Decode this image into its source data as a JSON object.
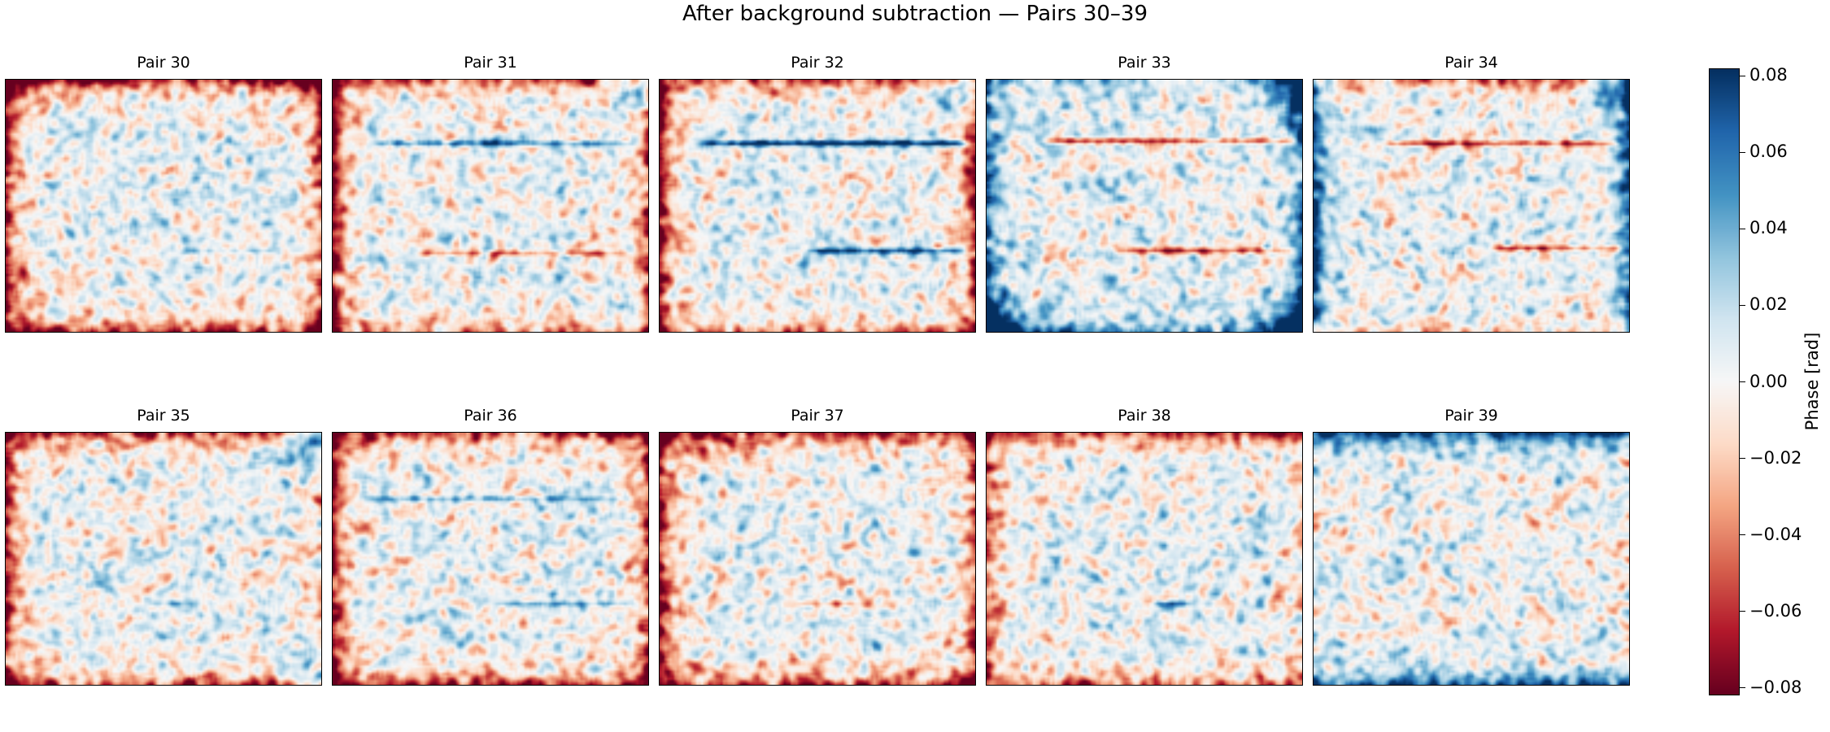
{
  "chart_data": {
    "type": "heatmap",
    "title": "After background subtraction — Pairs 30–39",
    "colormap": "RdBu",
    "value_range": [
      -0.082,
      0.082
    ],
    "colorbar": {
      "label": "Phase [rad]",
      "ticks": [
        "0.08",
        "0.06",
        "0.04",
        "0.02",
        "0.00",
        "−0.02",
        "−0.04",
        "−0.06",
        "−0.08"
      ],
      "tick_values": [
        0.08,
        0.06,
        0.04,
        0.02,
        0.0,
        -0.02,
        -0.04,
        -0.06,
        -0.08
      ]
    },
    "panels": [
      {
        "title": "Pair 30",
        "edge": {
          "left": -0.08,
          "right": -0.05,
          "top": -0.08,
          "bottom": -0.07
        },
        "corners": {},
        "streaks": [
          {
            "y": 0.68,
            "x0": 0.5,
            "x1": 0.88,
            "amp": 0.025
          }
        ]
      },
      {
        "title": "Pair 31",
        "edge": {
          "left": -0.08,
          "right": -0.06,
          "top": -0.05,
          "bottom": -0.04
        },
        "corners": {
          "tr": 0.07,
          "br": 0.04
        },
        "streaks": [
          {
            "y": 0.25,
            "x0": 0.1,
            "x1": 0.98,
            "amp": 0.05
          },
          {
            "y": 0.69,
            "x0": 0.25,
            "x1": 0.95,
            "amp": -0.04
          }
        ]
      },
      {
        "title": "Pair 32",
        "edge": {
          "left": -0.085,
          "right": -0.075,
          "top": -0.05,
          "bottom": -0.04
        },
        "corners": {
          "tr": 0.07
        },
        "streaks": [
          {
            "y": 0.25,
            "x0": 0.12,
            "x1": 0.99,
            "amp": 0.085
          },
          {
            "y": 0.68,
            "x0": 0.45,
            "x1": 0.99,
            "amp": 0.07
          }
        ]
      },
      {
        "title": "Pair 33",
        "edge": {
          "left": 0.06,
          "right": 0.05,
          "top": 0.02,
          "bottom": 0.04
        },
        "corners": {
          "tr": 0.08,
          "bl": 0.08,
          "br": 0.07
        },
        "streaks": [
          {
            "y": 0.24,
            "x0": 0.15,
            "x1": 0.99,
            "amp": -0.06
          },
          {
            "y": 0.68,
            "x0": 0.4,
            "x1": 0.99,
            "amp": -0.05
          }
        ]
      },
      {
        "title": "Pair 34",
        "edge": {
          "left": 0.075,
          "right": 0.06,
          "top": -0.04,
          "bottom": -0.02
        },
        "corners": {
          "tr": 0.08
        },
        "streaks": [
          {
            "y": 0.25,
            "x0": 0.2,
            "x1": 0.99,
            "amp": -0.06
          },
          {
            "y": 0.67,
            "x0": 0.55,
            "x1": 0.99,
            "amp": -0.06
          }
        ]
      },
      {
        "title": "Pair 35",
        "edge": {
          "left": -0.07,
          "right": -0.02,
          "top": -0.06,
          "bottom": -0.06
        },
        "corners": {
          "tr": 0.08,
          "br": 0.06
        },
        "streaks": [
          {
            "y": 0.68,
            "x0": 0.45,
            "x1": 0.6,
            "amp": 0.04
          }
        ]
      },
      {
        "title": "Pair 36",
        "edge": {
          "left": -0.08,
          "right": -0.06,
          "top": -0.06,
          "bottom": -0.06
        },
        "corners": {},
        "streaks": [
          {
            "y": 0.26,
            "x0": 0.08,
            "x1": 0.98,
            "amp": 0.035
          },
          {
            "y": 0.68,
            "x0": 0.5,
            "x1": 0.98,
            "amp": 0.04
          }
        ]
      },
      {
        "title": "Pair 37",
        "edge": {
          "left": -0.08,
          "right": -0.05,
          "top": -0.07,
          "bottom": -0.06
        },
        "corners": {},
        "streaks": [
          {
            "y": 0.68,
            "x0": 0.4,
            "x1": 0.65,
            "amp": -0.03
          }
        ]
      },
      {
        "title": "Pair 38",
        "edge": {
          "left": -0.05,
          "right": -0.02,
          "top": -0.06,
          "bottom": -0.04
        },
        "corners": {},
        "streaks": [
          {
            "y": 0.68,
            "x0": 0.5,
            "x1": 0.68,
            "amp": 0.04
          }
        ]
      },
      {
        "title": "Pair 39",
        "edge": {
          "left": 0.0,
          "right": -0.01,
          "top": 0.07,
          "bottom": 0.06
        },
        "corners": {},
        "streaks": []
      }
    ]
  }
}
